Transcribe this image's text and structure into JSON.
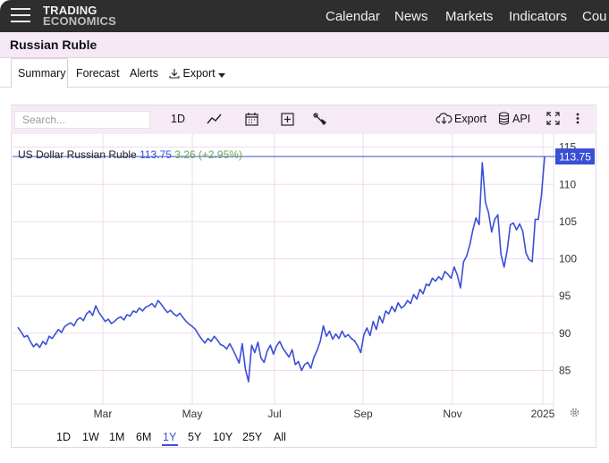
{
  "nav": {
    "logo_line1": "TRADING",
    "logo_line2": "ECONOMICS",
    "links": [
      "Calendar",
      "News",
      "Markets",
      "Indicators",
      "Cou"
    ]
  },
  "page": {
    "title": "Russian Ruble"
  },
  "tabs": {
    "summary": "Summary",
    "forecast": "Forecast",
    "alerts": "Alerts",
    "export": "Export"
  },
  "toolbar": {
    "search_placeholder": "Search...",
    "interval": "1D",
    "export": "Export",
    "api": "API",
    "icons": [
      "line-chart-icon",
      "calendar-icon",
      "plus-box-icon",
      "wrench-icon",
      "cloud-download-icon",
      "database-icon",
      "fullscreen-icon",
      "more-vertical-icon"
    ]
  },
  "legend": {
    "name": "US Dollar Russian Ruble",
    "price": "113.75",
    "change": "3.26 (+2.95%)"
  },
  "ranges": [
    "1D",
    "1W",
    "1M",
    "6M",
    "1Y",
    "5Y",
    "10Y",
    "25Y",
    "All"
  ],
  "active_range": "1Y",
  "colors": {
    "line": "#3a4fd6",
    "accent": "#3a4fd6",
    "positive": "#6aa84f",
    "grid": "#eed9ee",
    "toolbar_bg": "#f5eaf5"
  },
  "chart_data": {
    "type": "line",
    "title": "",
    "xlabel": "",
    "ylabel": "",
    "x_ticks": [
      "Mar",
      "May",
      "Jul",
      "Sep",
      "Nov",
      "2025"
    ],
    "y_ticks": [
      85,
      90,
      95,
      100,
      105,
      110,
      115
    ],
    "ylim": [
      80.5,
      117
    ],
    "last_value_label": "113.75",
    "grid": true,
    "series": [
      {
        "values": [
          90.8,
          90.2,
          89.5,
          89.7,
          88.9,
          88.2,
          88.6,
          88.1,
          88.9,
          88.5,
          89.6,
          89.3,
          89.9,
          90.5,
          90.1,
          90.9,
          91.2,
          91.4,
          91.0,
          91.8,
          92.1,
          91.7,
          92.6,
          93.0,
          92.4,
          93.7,
          92.8,
          92.2,
          91.6,
          91.9,
          91.3,
          91.6,
          92.0,
          92.2,
          91.8,
          92.5,
          92.3,
          93.0,
          92.8,
          93.4,
          93.0,
          93.5,
          93.7,
          94.0,
          93.5,
          94.4,
          93.9,
          93.3,
          92.8,
          93.1,
          92.6,
          92.3,
          92.7,
          92.1,
          91.6,
          91.2,
          90.9,
          90.5,
          89.8,
          89.2,
          88.7,
          89.3,
          88.9,
          89.6,
          89.1,
          88.5,
          88.3,
          87.9,
          88.6,
          87.8,
          86.9,
          86.0,
          88.6,
          85.2,
          83.5,
          88.4,
          87.4,
          88.8,
          86.7,
          86.1,
          87.6,
          88.4,
          87.2,
          88.3,
          88.9,
          88.0,
          87.4,
          86.8,
          87.8,
          85.8,
          86.2,
          85.0,
          85.8,
          86.1,
          85.3,
          86.8,
          87.7,
          88.9,
          91.0,
          89.6,
          90.3,
          89.2,
          89.9,
          89.3,
          90.3,
          89.5,
          89.8,
          89.3,
          89.0,
          88.3,
          87.4,
          89.8,
          90.7,
          89.7,
          91.6,
          90.5,
          92.3,
          91.4,
          93.0,
          92.6,
          93.6,
          92.9,
          94.1,
          93.4,
          93.7,
          94.4,
          94.0,
          95.2,
          94.6,
          95.9,
          95.3,
          96.6,
          96.4,
          97.4,
          97.0,
          97.6,
          97.2,
          98.3,
          97.9,
          97.4,
          98.9,
          97.8,
          96.1,
          99.6,
          100.4,
          101.9,
          103.9,
          105.5,
          104.6,
          112.9,
          107.6,
          106.2,
          103.6,
          105.3,
          105.9,
          100.6,
          98.9,
          101.2,
          104.6,
          104.8,
          103.9,
          104.7,
          103.7,
          100.8,
          99.9,
          99.6,
          105.3,
          105.3,
          108.6,
          113.75
        ]
      }
    ]
  }
}
